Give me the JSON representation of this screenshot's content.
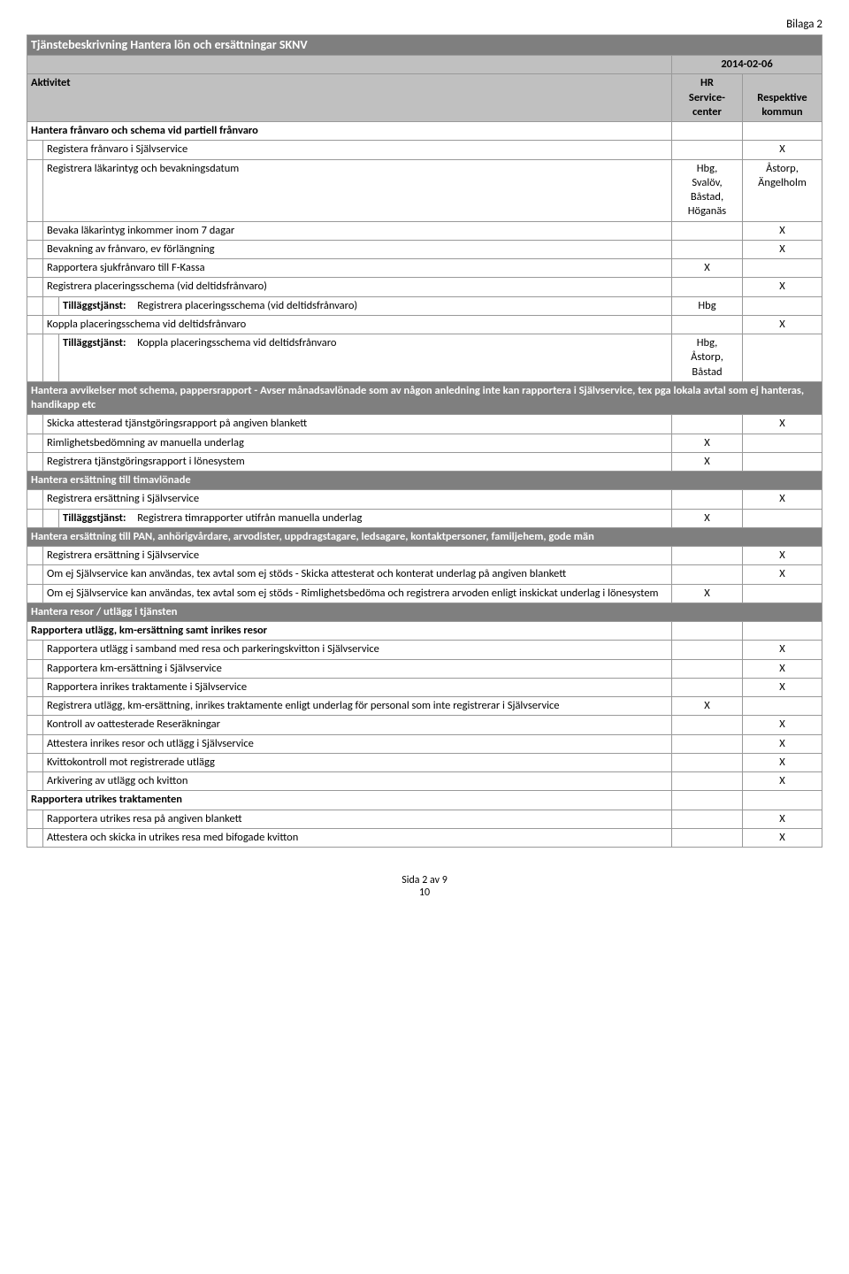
{
  "document": {
    "attachment_label": "Bilaga 2",
    "title": "Tjänstebeskrivning Hantera lön och ersättningar SKNV",
    "date": "2014-02-06",
    "col_activity": "Aktivitet",
    "col_hr_line1": "HR",
    "col_hr_line2": "Service-",
    "col_hr_line3": "center",
    "col_rk_line1": "Respektive",
    "col_rk_line2": "kommun",
    "footer_side": "Sida 2 av 9",
    "footer_page": "10",
    "tillaggs_label": "Tilläggstjänst:"
  },
  "rows": [
    {
      "type": "subtitle",
      "text": "Hantera frånvaro och schema vid partiell frånvaro"
    },
    {
      "type": "row",
      "indent": 1,
      "text": "Registera frånvaro i Självservice",
      "hr": "",
      "rk": "X"
    },
    {
      "type": "row",
      "indent": 1,
      "text": "Registrera läkarintyg och bevakningsdatum",
      "hr": "Hbg, Svalöv, Båstad, Höganäs",
      "rk": "Åstorp, Ängelholm"
    },
    {
      "type": "row",
      "indent": 1,
      "text": "Bevaka läkarintyg inkommer inom 7 dagar",
      "hr": "",
      "rk": "X"
    },
    {
      "type": "row",
      "indent": 1,
      "text": "Bevakning av frånvaro, ev förlängning",
      "hr": "",
      "rk": "X"
    },
    {
      "type": "row",
      "indent": 1,
      "text": "Rapportera sjukfrånvaro till F-Kassa",
      "hr": "X",
      "rk": ""
    },
    {
      "type": "row",
      "indent": 1,
      "text": "Registrera placeringsschema (vid deltidsfrånvaro)",
      "hr": "",
      "rk": "X"
    },
    {
      "type": "row",
      "indent": 2,
      "tillaggs": true,
      "text": "Registrera placeringsschema (vid deltidsfrånvaro)",
      "hr": "Hbg",
      "rk": ""
    },
    {
      "type": "row",
      "indent": 1,
      "text": "Koppla placeringsschema vid deltidsfrånvaro",
      "hr": "",
      "rk": "X"
    },
    {
      "type": "row",
      "indent": 2,
      "tillaggs": true,
      "text": "Koppla placeringsschema vid deltidsfrånvaro",
      "hr": "Hbg, Åstorp, Båstad",
      "rk": ""
    },
    {
      "type": "section",
      "text": "Hantera avvikelser mot schema, pappersrapport - Avser månadsavlönade som av någon anledning inte kan rapportera i Självservice, tex pga lokala avtal som ej hanteras, handikapp etc"
    },
    {
      "type": "row",
      "indent": 1,
      "text": "Skicka attesterad tjänstgöringsrapport på angiven blankett",
      "hr": "",
      "rk": "X"
    },
    {
      "type": "row",
      "indent": 1,
      "text": "Rimlighetsbedömning av manuella underlag",
      "hr": "X",
      "rk": ""
    },
    {
      "type": "row",
      "indent": 1,
      "text": "Registrera tjänstgöringsrapport i lönesystem",
      "hr": "X",
      "rk": ""
    },
    {
      "type": "section",
      "text": "Hantera ersättning till timavlönade"
    },
    {
      "type": "row",
      "indent": 1,
      "text": "Registrera ersättning i Självservice",
      "hr": "",
      "rk": "X"
    },
    {
      "type": "row",
      "indent": 2,
      "tillaggs": true,
      "text": "Registrera timrapporter utifrån manuella underlag",
      "hr": "X",
      "rk": ""
    },
    {
      "type": "section",
      "text": "Hantera ersättning till PAN, anhörigvårdare, arvodister, uppdragstagare, ledsagare, kontaktpersoner, familjehem, gode män"
    },
    {
      "type": "row",
      "indent": 1,
      "text": "Registrera ersättning i Självservice",
      "hr": "",
      "rk": "X"
    },
    {
      "type": "row",
      "indent": 1,
      "text": "Om ej Självservice kan användas, tex avtal som ej stöds - Skicka attesterat och konterat underlag på angiven blankett",
      "hr": "",
      "rk": "X"
    },
    {
      "type": "row",
      "indent": 1,
      "text": "Om ej Självservice kan användas, tex avtal som ej stöds - Rimlighetsbedöma och registrera arvoden enligt inskickat underlag i lönesystem",
      "hr": "X",
      "rk": ""
    },
    {
      "type": "section",
      "text": "Hantera resor / utlägg i tjänsten"
    },
    {
      "type": "subtitle",
      "text": "Rapportera utlägg, km-ersättning samt inrikes resor"
    },
    {
      "type": "row",
      "indent": 1,
      "text": "Rapportera utlägg i samband med resa och parkeringskvitton i Självservice",
      "hr": "",
      "rk": "X"
    },
    {
      "type": "row",
      "indent": 1,
      "text": "Rapportera km-ersättning i Självservice",
      "hr": "",
      "rk": "X"
    },
    {
      "type": "row",
      "indent": 1,
      "text": "Rapportera inrikes traktamente i Självservice",
      "hr": "",
      "rk": "X"
    },
    {
      "type": "row",
      "indent": 1,
      "text": "Registrera utlägg, km-ersättning, inrikes traktamente enligt underlag för personal som inte registrerar i Självservice",
      "hr": "X",
      "rk": ""
    },
    {
      "type": "row",
      "indent": 1,
      "text": "Kontroll av oattesterade Reseräkningar",
      "hr": "",
      "rk": "X"
    },
    {
      "type": "row",
      "indent": 1,
      "text": "Attestera inrikes resor och utlägg i Självservice",
      "hr": "",
      "rk": "X"
    },
    {
      "type": "row",
      "indent": 1,
      "text": "Kvittokontroll mot registrerade utlägg",
      "hr": "",
      "rk": "X"
    },
    {
      "type": "row",
      "indent": 1,
      "text": "Arkivering av utlägg och kvitton",
      "hr": "",
      "rk": "X"
    },
    {
      "type": "subtitle",
      "text": "Rapportera utrikes traktamenten"
    },
    {
      "type": "row",
      "indent": 1,
      "text": "Rapportera utrikes resa på angiven blankett",
      "hr": "",
      "rk": "X"
    },
    {
      "type": "row",
      "indent": 1,
      "text": "Attestera och skicka in utrikes resa med bifogade kvitton",
      "hr": "",
      "rk": "X"
    }
  ]
}
